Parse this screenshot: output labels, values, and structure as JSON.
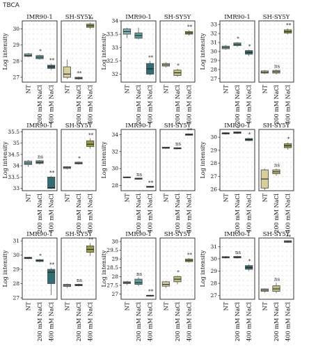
{
  "figure_title": "TBCA",
  "colors": {
    "NT": "#7ab3b8",
    "salt200": "#5fa09f",
    "salt400": "#2f6e74",
    "sh_NT": "#d8cf9a",
    "sh_200": "#c4c07a",
    "sh_400": "#9e9d3a"
  },
  "chart_data": [
    {
      "type": "box",
      "title": "IMR90-1",
      "ylabel": "Log intensity",
      "categories": [
        "NT",
        "200 mM NaCl",
        "400 mM NaCl"
      ],
      "ylim": [
        26.7,
        30.5
      ],
      "yticks": [
        27,
        28,
        29,
        30
      ],
      "boxes": [
        {
          "q1": 28.3,
          "med": 28.35,
          "q3": 28.45,
          "lo": 28.25,
          "hi": 28.5
        },
        {
          "q1": 28.15,
          "med": 28.25,
          "q3": 28.35,
          "lo": 28.1,
          "hi": 28.4
        },
        {
          "q1": 27.55,
          "med": 27.65,
          "q3": 27.75,
          "lo": 27.45,
          "hi": 27.85
        }
      ],
      "annotations": [
        "",
        "*",
        "**"
      ]
    },
    {
      "type": "box",
      "title": "SH-SY5Y",
      "categories": [
        "NT",
        "200 mM NaCl",
        "400 mM NaCl"
      ],
      "ylim": [
        26.7,
        30.5
      ],
      "boxes": [
        {
          "q1": 27.0,
          "med": 27.2,
          "q3": 27.65,
          "lo": 26.9,
          "hi": 28.1
        },
        {
          "q1": 26.9,
          "med": 26.95,
          "q3": 27.0,
          "lo": 26.85,
          "hi": 27.05
        },
        {
          "q1": 30.1,
          "med": 30.2,
          "q3": 30.3,
          "lo": 30.0,
          "hi": 30.4
        }
      ],
      "annotations": [
        "",
        "**",
        "**"
      ]
    },
    {
      "type": "box",
      "title": "IMR90-1",
      "ylabel": "Log intensity",
      "categories": [
        "NT",
        "200 mM NaCl",
        "400 mM NaCl"
      ],
      "ylim": [
        31.7,
        34.0
      ],
      "yticks": [
        32.0,
        32.5,
        33.0,
        33.5,
        34.0
      ],
      "boxes": [
        {
          "q1": 33.5,
          "med": 33.6,
          "q3": 33.7,
          "lo": 33.35,
          "hi": 33.75
        },
        {
          "q1": 33.35,
          "med": 33.45,
          "q3": 33.55,
          "lo": 33.3,
          "hi": 33.75
        },
        {
          "q1": 32.0,
          "med": 32.2,
          "q3": 32.4,
          "lo": 31.95,
          "hi": 32.5
        }
      ],
      "annotations": [
        "",
        "",
        "**"
      ]
    },
    {
      "type": "box",
      "title": "SH-SY5Y",
      "categories": [
        "NT",
        "200 mM NaCl",
        "400 mM NaCl"
      ],
      "ylim": [
        31.7,
        34.0
      ],
      "boxes": [
        {
          "q1": 32.3,
          "med": 32.35,
          "q3": 32.4,
          "lo": 32.25,
          "hi": 32.45
        },
        {
          "q1": 31.95,
          "med": 32.05,
          "q3": 32.15,
          "lo": 31.9,
          "hi": 32.2
        },
        {
          "q1": 33.5,
          "med": 33.55,
          "q3": 33.6,
          "lo": 33.45,
          "hi": 33.65
        }
      ],
      "annotations": [
        "",
        "*",
        "**"
      ]
    },
    {
      "type": "box",
      "title": "IMR90-1",
      "ylabel": "Log intensity",
      "categories": [
        "NT",
        "200 mM NaCl",
        "400 mM NaCl"
      ],
      "ylim": [
        26.6,
        33.4
      ],
      "yticks": [
        27,
        28,
        29,
        30,
        31,
        32,
        33
      ],
      "boxes": [
        {
          "q1": 30.3,
          "med": 30.45,
          "q3": 30.6,
          "lo": 30.2,
          "hi": 30.7
        },
        {
          "q1": 30.65,
          "med": 30.8,
          "q3": 30.95,
          "lo": 30.5,
          "hi": 31.05
        },
        {
          "q1": 29.7,
          "med": 29.9,
          "q3": 30.1,
          "lo": 29.5,
          "hi": 30.2
        }
      ],
      "annotations": [
        "",
        "*",
        "*"
      ]
    },
    {
      "type": "box",
      "title": "SH-SY5Y",
      "categories": [
        "NT",
        "200 mM NaCl",
        "400 mM NaCl"
      ],
      "ylim": [
        26.6,
        33.4
      ],
      "boxes": [
        {
          "q1": 27.6,
          "med": 27.7,
          "q3": 27.85,
          "lo": 27.5,
          "hi": 27.95
        },
        {
          "q1": 27.6,
          "med": 27.75,
          "q3": 27.9,
          "lo": 27.45,
          "hi": 28.0
        },
        {
          "q1": 32.05,
          "med": 32.2,
          "q3": 32.4,
          "lo": 31.9,
          "hi": 32.55
        }
      ],
      "annotations": [
        "",
        "ns",
        "**"
      ]
    },
    {
      "type": "box",
      "title": "IMR90-1",
      "ylabel": "Log intensity",
      "categories": [
        "NT",
        "200 mM NaCl",
        "400 mM NaCl"
      ],
      "ylim": [
        32.9,
        35.6
      ],
      "yticks": [
        33.0,
        33.5,
        34.0,
        34.5,
        35.0,
        35.5
      ],
      "boxes": [
        {
          "q1": 34.05,
          "med": 34.12,
          "q3": 34.2,
          "lo": 33.95,
          "hi": 34.25
        },
        {
          "q1": 34.1,
          "med": 34.15,
          "q3": 34.22,
          "lo": 34.05,
          "hi": 34.25
        },
        {
          "q1": 33.0,
          "med": 33.03,
          "q3": 33.5,
          "lo": 32.98,
          "hi": 33.55
        }
      ],
      "annotations": [
        "",
        "ns",
        "**"
      ]
    },
    {
      "type": "box",
      "title": "SH-SY5Y",
      "categories": [
        "NT",
        "200 mM NaCl",
        "400 mM NaCl"
      ],
      "ylim": [
        32.9,
        35.6
      ],
      "boxes": [
        {
          "q1": 33.88,
          "med": 33.92,
          "q3": 33.96,
          "lo": 33.84,
          "hi": 33.98
        },
        {
          "q1": 34.08,
          "med": 34.12,
          "q3": 34.16,
          "lo": 34.05,
          "hi": 34.18
        },
        {
          "q1": 34.85,
          "med": 34.95,
          "q3": 35.1,
          "lo": 34.75,
          "hi": 35.2
        }
      ],
      "annotations": [
        "",
        "*",
        "**"
      ]
    },
    {
      "type": "box",
      "title": "IMR90-1",
      "ylabel": "Log intensity",
      "categories": [
        "NT",
        "200 mM NaCl",
        "400 mM NaCl"
      ],
      "ylim": [
        27.4,
        34.6
      ],
      "yticks": [
        28,
        30,
        32,
        34
      ],
      "boxes": [
        {
          "q1": 28.92,
          "med": 28.97,
          "q3": 29.02,
          "lo": 28.88,
          "hi": 29.05
        },
        {
          "q1": 28.75,
          "med": 28.8,
          "q3": 28.88,
          "lo": 28.7,
          "hi": 28.92
        },
        {
          "q1": 27.8,
          "med": 27.85,
          "q3": 27.92,
          "lo": 27.75,
          "hi": 27.95
        }
      ],
      "annotations": [
        "",
        "ns",
        "**"
      ]
    },
    {
      "type": "box",
      "title": "SH-SY5Y",
      "categories": [
        "NT",
        "200 mM NaCl",
        "400 mM NaCl"
      ],
      "ylim": [
        27.4,
        34.6
      ],
      "boxes": [
        {
          "q1": 32.38,
          "med": 32.45,
          "q3": 32.52,
          "lo": 32.32,
          "hi": 32.55
        },
        {
          "q1": 32.32,
          "med": 32.38,
          "q3": 32.45,
          "lo": 32.28,
          "hi": 32.5
        },
        {
          "q1": 33.92,
          "med": 34.0,
          "q3": 34.08,
          "lo": 33.86,
          "hi": 34.12
        }
      ],
      "annotations": [
        "",
        "ns",
        "**"
      ]
    },
    {
      "type": "box",
      "title": "IMR90-1",
      "ylabel": "Log intensity",
      "categories": [
        "NT",
        "200 mM NaCl",
        "400 mM NaCl"
      ],
      "ylim": [
        25.9,
        30.6
      ],
      "yticks": [
        26,
        27,
        28,
        29,
        30
      ],
      "boxes": [
        {
          "q1": 30.25,
          "med": 30.3,
          "q3": 30.35,
          "lo": 30.2,
          "hi": 30.4
        },
        {
          "q1": 30.3,
          "med": 30.35,
          "q3": 30.42,
          "lo": 30.25,
          "hi": 30.45
        },
        {
          "q1": 29.75,
          "med": 29.82,
          "q3": 29.9,
          "lo": 29.7,
          "hi": 29.95
        }
      ],
      "annotations": [
        "",
        "*",
        "*"
      ]
    },
    {
      "type": "box",
      "title": "SH-SY5Y",
      "categories": [
        "NT",
        "200 mM NaCl",
        "400 mM NaCl"
      ],
      "ylim": [
        25.9,
        30.6
      ],
      "boxes": [
        {
          "q1": 26.1,
          "med": 26.8,
          "q3": 27.5,
          "lo": 25.95,
          "hi": 27.6
        },
        {
          "q1": 27.2,
          "med": 27.35,
          "q3": 27.5,
          "lo": 27.05,
          "hi": 27.6
        },
        {
          "q1": 29.2,
          "med": 29.35,
          "q3": 29.5,
          "lo": 29.05,
          "hi": 29.6
        }
      ],
      "annotations": [
        "",
        "ns",
        "*"
      ]
    },
    {
      "type": "box",
      "title": "IMR90-1",
      "ylabel": "Log intensity",
      "categories": [
        "NT",
        "200 mM NaCl",
        "400 mM NaCl"
      ],
      "ylim": [
        26.9,
        31.2
      ],
      "yticks": [
        27,
        28,
        29,
        30,
        31
      ],
      "boxes": [
        {
          "q1": 29.75,
          "med": 29.8,
          "q3": 29.85,
          "lo": 29.72,
          "hi": 29.88
        },
        {
          "q1": 29.55,
          "med": 29.62,
          "q3": 29.68,
          "lo": 29.5,
          "hi": 29.72
        },
        {
          "q1": 28.0,
          "med": 28.8,
          "q3": 29.0,
          "lo": 27.2,
          "hi": 29.1
        }
      ],
      "annotations": [
        "",
        "*",
        "**"
      ]
    },
    {
      "type": "box",
      "title": "SH-SY5Y",
      "categories": [
        "NT",
        "200 mM NaCl",
        "400 mM NaCl"
      ],
      "ylim": [
        26.9,
        31.2
      ],
      "boxes": [
        {
          "q1": 27.8,
          "med": 27.88,
          "q3": 27.95,
          "lo": 27.7,
          "hi": 28.0
        },
        {
          "q1": 27.85,
          "med": 27.9,
          "q3": 27.95,
          "lo": 27.8,
          "hi": 28.0
        },
        {
          "q1": 30.2,
          "med": 30.4,
          "q3": 30.65,
          "lo": 29.95,
          "hi": 30.85
        }
      ],
      "annotations": [
        "",
        "ns",
        "**"
      ]
    },
    {
      "type": "box",
      "title": "IMR90-1",
      "ylabel": "Log intensity",
      "categories": [
        "NT",
        "200 mM NaCl",
        "400 mM NaCl"
      ],
      "ylim": [
        26.7,
        30.2
      ],
      "yticks": [
        27.0,
        27.5,
        28.0,
        28.5,
        29.0,
        29.5,
        30.0
      ],
      "boxes": [
        {
          "q1": 27.6,
          "med": 27.65,
          "q3": 27.7,
          "lo": 27.52,
          "hi": 27.75
        },
        {
          "q1": 27.55,
          "med": 27.65,
          "q3": 27.85,
          "lo": 27.45,
          "hi": 27.95
        },
        {
          "q1": 26.88,
          "med": 26.9,
          "q3": 26.93,
          "lo": 26.86,
          "hi": 26.95
        }
      ],
      "annotations": [
        "",
        "ns",
        "**"
      ]
    },
    {
      "type": "box",
      "title": "SH-SY5Y",
      "categories": [
        "NT",
        "200 mM NaCl",
        "400 mM NaCl"
      ],
      "ylim": [
        26.7,
        30.2
      ],
      "boxes": [
        {
          "q1": 27.45,
          "med": 27.55,
          "q3": 27.7,
          "lo": 27.35,
          "hi": 27.75
        },
        {
          "q1": 27.7,
          "med": 27.85,
          "q3": 28.0,
          "lo": 27.55,
          "hi": 28.05
        },
        {
          "q1": 28.85,
          "med": 28.92,
          "q3": 29.0,
          "lo": 28.8,
          "hi": 29.05
        }
      ],
      "annotations": [
        "",
        "*",
        "**"
      ]
    },
    {
      "type": "box",
      "title": "IMR90-1",
      "ylabel": "Log intensity",
      "categories": [
        "NT",
        "200 mM NaCl",
        "400 mM NaCl"
      ],
      "ylim": [
        26.7,
        31.7
      ],
      "yticks": [
        27,
        28,
        29,
        30,
        31
      ],
      "boxes": [
        {
          "q1": 30.08,
          "med": 30.12,
          "q3": 30.18,
          "lo": 30.02,
          "hi": 30.22
        },
        {
          "q1": 30.08,
          "med": 30.12,
          "q3": 30.2,
          "lo": 30.02,
          "hi": 30.25
        },
        {
          "q1": 29.15,
          "med": 29.3,
          "q3": 29.45,
          "lo": 29.0,
          "hi": 29.55
        }
      ],
      "annotations": [
        "",
        "ns",
        "*"
      ]
    },
    {
      "type": "box",
      "title": "SH-SY5Y",
      "categories": [
        "NT",
        "200 mM NaCl",
        "400 mM NaCl"
      ],
      "ylim": [
        26.7,
        31.7
      ],
      "boxes": [
        {
          "q1": 27.35,
          "med": 27.45,
          "q3": 27.55,
          "lo": 27.25,
          "hi": 27.6
        },
        {
          "q1": 27.35,
          "med": 27.55,
          "q3": 27.8,
          "lo": 27.2,
          "hi": 28.05
        },
        {
          "q1": 31.35,
          "med": 31.4,
          "q3": 31.48,
          "lo": 31.3,
          "hi": 31.52
        }
      ],
      "annotations": [
        "",
        "ns",
        "**"
      ]
    }
  ]
}
